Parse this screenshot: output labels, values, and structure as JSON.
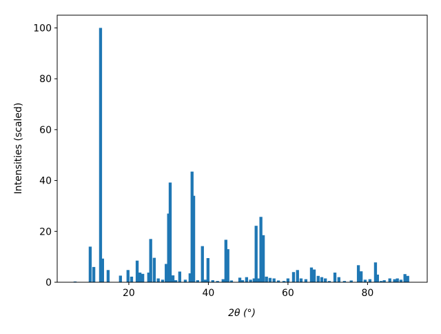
{
  "chart_data": {
    "type": "bar",
    "xlabel": "2θ (°)",
    "ylabel": "Intensities (scaled)",
    "x": [
      6.5,
      10.3,
      11.2,
      12.9,
      13.4,
      14.8,
      17.9,
      19.8,
      20.7,
      22.1,
      22.8,
      23.5,
      25.0,
      25.5,
      26.4,
      27.4,
      28.5,
      29.4,
      30.0,
      30.4,
      31.1,
      31.8,
      32.8,
      34.2,
      35.4,
      35.9,
      36.3,
      37.3,
      38.5,
      39.2,
      39.9,
      41.1,
      42.3,
      43.7,
      44.4,
      44.9,
      45.8,
      47.9,
      48.6,
      49.6,
      50.6,
      51.5,
      52.0,
      52.7,
      53.2,
      53.8,
      54.6,
      55.5,
      56.5,
      57.6,
      59.0,
      60.0,
      61.4,
      62.4,
      63.3,
      64.5,
      65.9,
      66.6,
      67.6,
      68.5,
      69.4,
      70.4,
      71.8,
      72.8,
      74.2,
      75.9,
      77.7,
      78.4,
      79.4,
      80.6,
      82.0,
      82.5,
      83.4,
      84.2,
      85.6,
      86.8,
      87.5,
      88.4,
      89.4,
      90.1
    ],
    "values": [
      0.3,
      14,
      6,
      100,
      9.3,
      4.8,
      2.6,
      4.8,
      2.2,
      8.5,
      3.8,
      3.3,
      3.8,
      17,
      9.6,
      1.5,
      1,
      7.2,
      27,
      39.2,
      2.7,
      0.8,
      4.2,
      1,
      3.5,
      43.5,
      34,
      0.8,
      14.2,
      1,
      9.5,
      0.8,
      0.5,
      1.2,
      16.7,
      13,
      0.7,
      1.8,
      0.8,
      2,
      1,
      1.5,
      22.2,
      1.5,
      25.7,
      18.5,
      2.2,
      1.7,
      1.5,
      0.7,
      0.5,
      1.5,
      4,
      4.8,
      1.5,
      1.2,
      5.8,
      5,
      2.5,
      2,
      1.5,
      0.5,
      3.8,
      2,
      0.5,
      0.7,
      6.7,
      4.3,
      1,
      1.2,
      7.8,
      3,
      0.5,
      0.8,
      1.5,
      1.2,
      1.5,
      1,
      3.2,
      2.5
    ],
    "color": "#1f77b4",
    "xlim": [
      2.0,
      95.0
    ],
    "xticks": [
      20,
      40,
      60,
      80
    ],
    "ylim": [
      0,
      105
    ],
    "yticks": [
      0,
      20,
      40,
      60,
      80,
      100
    ]
  }
}
